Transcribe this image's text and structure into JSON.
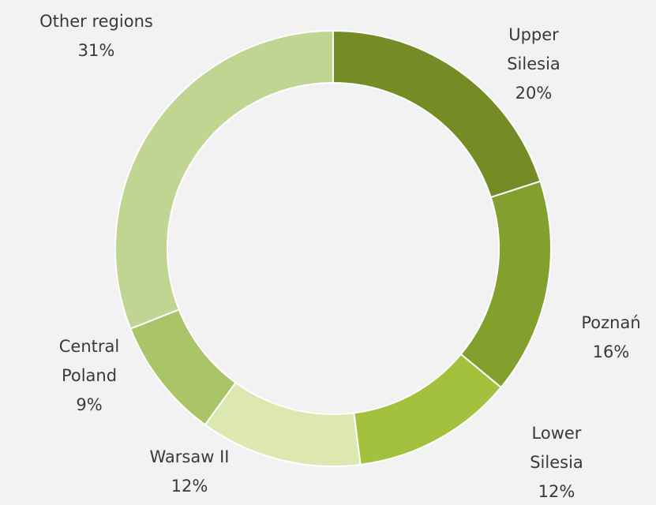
{
  "chart_data": {
    "type": "donut",
    "categories": [
      "Upper Silesia",
      "Poznań",
      "Lower Silesia",
      "Warsaw II",
      "Central Poland",
      "Other regions"
    ],
    "values": [
      20,
      16,
      12,
      12,
      9,
      31
    ],
    "value_labels": [
      "20%",
      "16%",
      "12%",
      "12%",
      "9%",
      "31%"
    ],
    "colors": [
      "#748b26",
      "#839f2e",
      "#a3c13d",
      "#dce8b0",
      "#aac567",
      "#c1d593"
    ]
  }
}
